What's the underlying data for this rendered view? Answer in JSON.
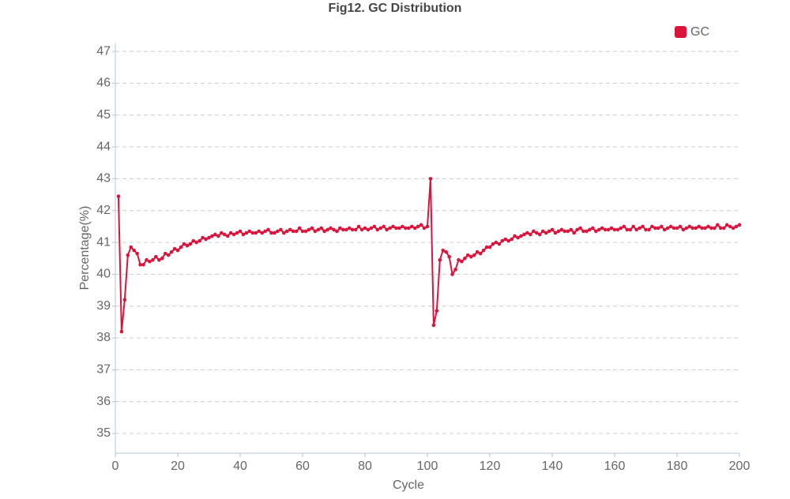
{
  "chart_data": {
    "type": "line",
    "title": "Fig12. GC Distribution",
    "x_label": "Cycle",
    "y_label": "Percentage(%)",
    "x": [
      1,
      2,
      3,
      4,
      5,
      6,
      7,
      8,
      9,
      10,
      11,
      12,
      13,
      14,
      15,
      16,
      17,
      18,
      19,
      20,
      21,
      22,
      23,
      24,
      25,
      26,
      27,
      28,
      29,
      30,
      31,
      32,
      33,
      34,
      35,
      36,
      37,
      38,
      39,
      40,
      41,
      42,
      43,
      44,
      45,
      46,
      47,
      48,
      49,
      50,
      51,
      52,
      53,
      54,
      55,
      56,
      57,
      58,
      59,
      60,
      61,
      62,
      63,
      64,
      65,
      66,
      67,
      68,
      69,
      70,
      71,
      72,
      73,
      74,
      75,
      76,
      77,
      78,
      79,
      80,
      81,
      82,
      83,
      84,
      85,
      86,
      87,
      88,
      89,
      90,
      91,
      92,
      93,
      94,
      95,
      96,
      97,
      98,
      99,
      100,
      101,
      102,
      103,
      104,
      105,
      106,
      107,
      108,
      109,
      110,
      111,
      112,
      113,
      114,
      115,
      116,
      117,
      118,
      119,
      120,
      121,
      122,
      123,
      124,
      125,
      126,
      127,
      128,
      129,
      130,
      131,
      132,
      133,
      134,
      135,
      136,
      137,
      138,
      139,
      140,
      141,
      142,
      143,
      144,
      145,
      146,
      147,
      148,
      149,
      150,
      151,
      152,
      153,
      154,
      155,
      156,
      157,
      158,
      159,
      160,
      161,
      162,
      163,
      164,
      165,
      166,
      167,
      168,
      169,
      170,
      171,
      172,
      173,
      174,
      175,
      176,
      177,
      178,
      179,
      180,
      181,
      182,
      183,
      184,
      185,
      186,
      187,
      188,
      189,
      190,
      191,
      192,
      193,
      194,
      195,
      196,
      197,
      198,
      199,
      200
    ],
    "series": [
      {
        "name": "GC",
        "color": "#dc143c",
        "values": [
          42.45,
          38.2,
          39.2,
          40.6,
          40.85,
          40.75,
          40.65,
          40.3,
          40.3,
          40.45,
          40.4,
          40.45,
          40.55,
          40.45,
          40.5,
          40.65,
          40.6,
          40.7,
          40.8,
          40.75,
          40.85,
          40.95,
          40.9,
          40.95,
          41.05,
          41.0,
          41.05,
          41.15,
          41.1,
          41.15,
          41.2,
          41.25,
          41.2,
          41.3,
          41.25,
          41.2,
          41.3,
          41.25,
          41.3,
          41.35,
          41.25,
          41.3,
          41.35,
          41.3,
          41.3,
          41.35,
          41.3,
          41.35,
          41.4,
          41.3,
          41.3,
          41.35,
          41.4,
          41.3,
          41.35,
          41.4,
          41.35,
          41.35,
          41.45,
          41.35,
          41.35,
          41.4,
          41.45,
          41.35,
          41.4,
          41.45,
          41.35,
          41.4,
          41.45,
          41.4,
          41.35,
          41.45,
          41.4,
          41.4,
          41.45,
          41.4,
          41.4,
          41.5,
          41.4,
          41.45,
          41.4,
          41.45,
          41.5,
          41.4,
          41.45,
          41.5,
          41.4,
          41.45,
          41.5,
          41.45,
          41.45,
          41.5,
          41.45,
          41.45,
          41.5,
          41.45,
          41.5,
          41.55,
          41.45,
          41.5,
          43.0,
          38.4,
          38.85,
          40.45,
          40.75,
          40.7,
          40.55,
          40.0,
          40.15,
          40.45,
          40.4,
          40.5,
          40.6,
          40.55,
          40.6,
          40.7,
          40.65,
          40.75,
          40.85,
          40.85,
          40.95,
          41.0,
          40.95,
          41.05,
          41.1,
          41.05,
          41.1,
          41.2,
          41.15,
          41.2,
          41.25,
          41.3,
          41.25,
          41.35,
          41.3,
          41.25,
          41.35,
          41.3,
          41.35,
          41.4,
          41.3,
          41.35,
          41.4,
          41.35,
          41.35,
          41.4,
          41.3,
          41.4,
          41.45,
          41.35,
          41.35,
          41.4,
          41.45,
          41.35,
          41.4,
          41.45,
          41.4,
          41.4,
          41.45,
          41.4,
          41.4,
          41.45,
          41.5,
          41.4,
          41.4,
          41.5,
          41.4,
          41.45,
          41.5,
          41.4,
          41.4,
          41.5,
          41.45,
          41.45,
          41.5,
          41.4,
          41.45,
          41.5,
          41.45,
          41.45,
          41.5,
          41.4,
          41.45,
          41.5,
          41.45,
          41.45,
          41.5,
          41.45,
          41.45,
          41.5,
          41.45,
          41.45,
          41.55,
          41.45,
          41.45,
          41.55,
          41.5,
          41.45,
          41.5,
          41.55
        ]
      }
    ],
    "xlim": [
      0,
      200
    ],
    "xticks": [
      0,
      20,
      40,
      60,
      80,
      100,
      120,
      140,
      160,
      180,
      200
    ],
    "ylim": [
      34.38,
      47.25
    ],
    "yticks": [
      35,
      36,
      37,
      38,
      39,
      40,
      41,
      42,
      43,
      44,
      45,
      46,
      47
    ],
    "grid": true,
    "legend": "top-right"
  }
}
